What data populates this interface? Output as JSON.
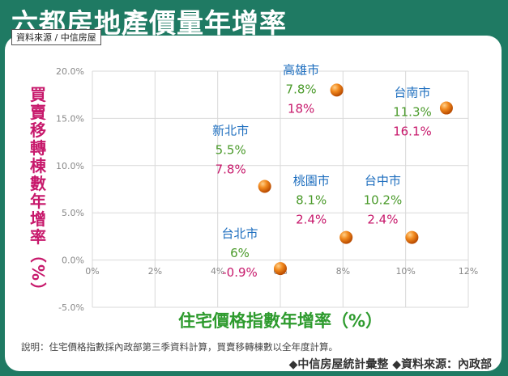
{
  "header": {
    "title": "六都房地產價量年增率",
    "source_badge": "資料來源 / 中信房屋"
  },
  "chart_data": {
    "type": "scatter",
    "xlabel": "住宅價格指數年增率（%）",
    "ylabel": "買賣移轉棟數年增率（%）",
    "xlim": [
      0,
      12
    ],
    "ylim": [
      -5,
      20
    ],
    "x_ticks": [
      "0%",
      "2%",
      "4%",
      "6%",
      "8%",
      "10%",
      "12%"
    ],
    "y_ticks": [
      "-5.0%",
      "0.0%",
      "5.0%",
      "10.0%",
      "15.0%",
      "20.0%"
    ],
    "grid": true,
    "points": [
      {
        "city": "高雄市",
        "x": 7.8,
        "y": 18,
        "x_label": "7.8%",
        "y_label": "18%"
      },
      {
        "city": "台南市",
        "x": 11.3,
        "y": 16.1,
        "x_label": "11.3%",
        "y_label": "16.1%"
      },
      {
        "city": "新北市",
        "x": 5.5,
        "y": 7.8,
        "x_label": "5.5%",
        "y_label": "7.8%"
      },
      {
        "city": "桃園市",
        "x": 8.1,
        "y": 2.4,
        "x_label": "8.1%",
        "y_label": "2.4%"
      },
      {
        "city": "台中市",
        "x": 10.2,
        "y": 2.4,
        "x_label": "10.2%",
        "y_label": "2.4%"
      },
      {
        "city": "台北市",
        "x": 6,
        "y": -0.9,
        "x_label": "6%",
        "y_label": "-0.9%"
      }
    ],
    "colors": {
      "city": "#1f6fbf",
      "x_value": "#4a9a2a",
      "y_value": "#c7186b",
      "marker": "#ec6d0a",
      "frame": "#1f7a63"
    }
  },
  "footer": {
    "note": "說明：住宅價格指數採內政部第三季資料計算，買賣移轉棟數以全年度計算。",
    "credit": "◆中信房屋統計彙整 ◆資料來源：內政部"
  }
}
